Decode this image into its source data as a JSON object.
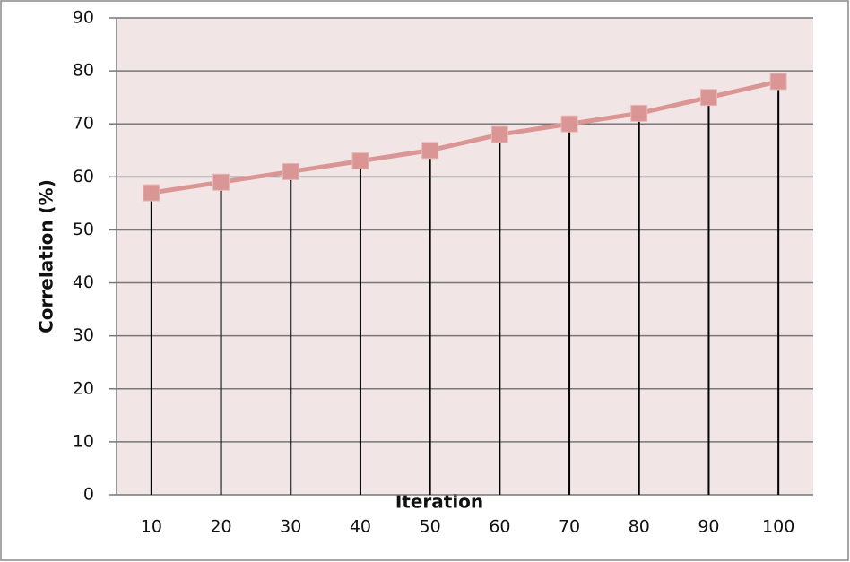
{
  "chart_data": {
    "type": "line",
    "x_label": "Iteration",
    "y_label": "Correlation (%)",
    "categories": [
      "10",
      "20",
      "30",
      "40",
      "50",
      "60",
      "70",
      "80",
      "90",
      "100"
    ],
    "values": [
      57,
      59,
      61,
      63,
      65,
      68,
      70,
      72,
      75,
      78
    ],
    "color": "#d99694",
    "drop_lines": true,
    "ylim": [
      0,
      90
    ],
    "yticks": [
      0,
      10,
      20,
      30,
      40,
      50,
      60,
      70,
      80,
      90
    ],
    "grid": true
  }
}
